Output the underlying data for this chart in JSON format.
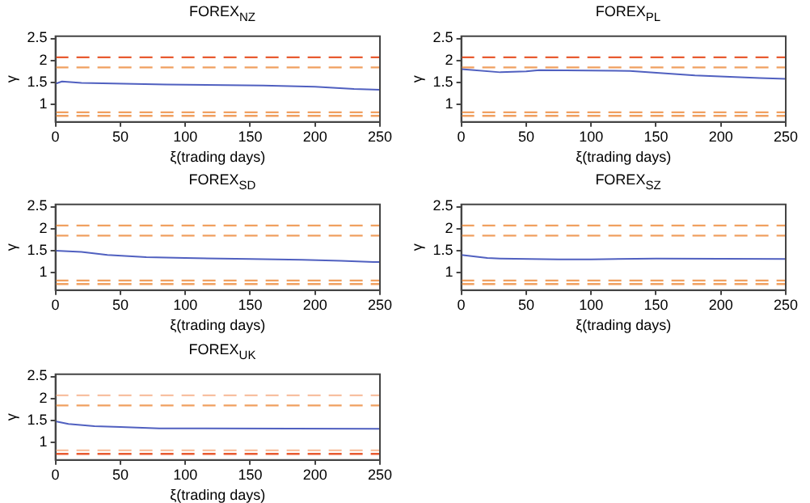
{
  "chart_data": [
    {
      "type": "line",
      "title": "FOREX$_{NZ}$",
      "xlabel": "ξ(trading days)",
      "ylabel": "γ",
      "xlim": [
        0,
        250
      ],
      "xticks": [
        0,
        50,
        100,
        150,
        200,
        250
      ],
      "ylim": [
        0.6,
        2.55
      ],
      "yticks": [
        1,
        1.5,
        2,
        2.5
      ],
      "grid": false,
      "legend": false,
      "marker": "none",
      "line_style": "solid",
      "series": [
        {
          "color": "#5060c0",
          "x": [
            0,
            5,
            20,
            85,
            160,
            200,
            230,
            250
          ],
          "values": [
            1.47,
            1.52,
            1.49,
            1.45,
            1.43,
            1.4,
            1.35,
            1.33
          ]
        }
      ],
      "ref_lines": [
        {
          "axis": "y",
          "value": 2.07,
          "color": "#e85a30",
          "line_style": "dashed"
        },
        {
          "axis": "y",
          "value": 1.84,
          "color": "#f0a060",
          "line_style": "dashed"
        },
        {
          "axis": "y",
          "value": 0.82,
          "color": "#f0a060",
          "line_style": "dashed"
        },
        {
          "axis": "y",
          "value": 0.74,
          "color": "#f0a060",
          "line_style": "dashed"
        }
      ]
    },
    {
      "type": "line",
      "title": "FOREX$_{PL}$",
      "xlabel": "ξ(trading days)",
      "ylabel": "γ",
      "xlim": [
        0,
        250
      ],
      "xticks": [
        0,
        50,
        100,
        150,
        200,
        250
      ],
      "ylim": [
        0.6,
        2.55
      ],
      "yticks": [
        1,
        1.5,
        2,
        2.5
      ],
      "grid": false,
      "legend": false,
      "marker": "none",
      "line_style": "solid",
      "series": [
        {
          "color": "#5060c0",
          "x": [
            0,
            10,
            30,
            50,
            60,
            130,
            180,
            230,
            250
          ],
          "values": [
            1.8,
            1.78,
            1.73,
            1.75,
            1.78,
            1.76,
            1.66,
            1.6,
            1.58
          ]
        }
      ],
      "ref_lines": [
        {
          "axis": "y",
          "value": 2.07,
          "color": "#e85a30",
          "line_style": "dashed"
        },
        {
          "axis": "y",
          "value": 1.84,
          "color": "#f0a060",
          "line_style": "dashed"
        },
        {
          "axis": "y",
          "value": 0.82,
          "color": "#f0a060",
          "line_style": "dashed"
        },
        {
          "axis": "y",
          "value": 0.74,
          "color": "#f0a060",
          "line_style": "dashed"
        }
      ]
    },
    {
      "type": "line",
      "title": "FOREX$_{SD}$",
      "xlabel": "ξ(trading days)",
      "ylabel": "γ",
      "xlim": [
        0,
        250
      ],
      "xticks": [
        0,
        50,
        100,
        150,
        200,
        250
      ],
      "ylim": [
        0.6,
        2.55
      ],
      "yticks": [
        1,
        1.5,
        2,
        2.5
      ],
      "grid": false,
      "legend": false,
      "marker": "none",
      "line_style": "solid",
      "series": [
        {
          "color": "#5060c0",
          "x": [
            0,
            20,
            40,
            70,
            100,
            150,
            190,
            220,
            245,
            250
          ],
          "values": [
            1.5,
            1.47,
            1.4,
            1.35,
            1.33,
            1.31,
            1.29,
            1.27,
            1.24,
            1.24
          ]
        }
      ],
      "ref_lines": [
        {
          "axis": "y",
          "value": 2.07,
          "color": "#f0a060",
          "line_style": "dashed"
        },
        {
          "axis": "y",
          "value": 1.84,
          "color": "#f0a060",
          "line_style": "dashed"
        },
        {
          "axis": "y",
          "value": 0.82,
          "color": "#f0a060",
          "line_style": "dashed"
        },
        {
          "axis": "y",
          "value": 0.74,
          "color": "#f0a060",
          "line_style": "dashed"
        }
      ]
    },
    {
      "type": "line",
      "title": "FOREX$_{SZ}$",
      "xlabel": "ξ(trading days)",
      "ylabel": "γ",
      "xlim": [
        0,
        250
      ],
      "xticks": [
        0,
        50,
        100,
        150,
        200,
        250
      ],
      "ylim": [
        0.6,
        2.55
      ],
      "yticks": [
        1,
        1.5,
        2,
        2.5
      ],
      "grid": false,
      "legend": false,
      "marker": "none",
      "line_style": "solid",
      "series": [
        {
          "color": "#5060c0",
          "x": [
            0,
            20,
            30,
            75,
            100,
            150,
            250
          ],
          "values": [
            1.4,
            1.33,
            1.32,
            1.3,
            1.3,
            1.32,
            1.31
          ]
        }
      ],
      "ref_lines": [
        {
          "axis": "y",
          "value": 2.07,
          "color": "#f0a060",
          "line_style": "dashed"
        },
        {
          "axis": "y",
          "value": 1.84,
          "color": "#f0a060",
          "line_style": "dashed"
        },
        {
          "axis": "y",
          "value": 0.82,
          "color": "#f0a060",
          "line_style": "dashed"
        },
        {
          "axis": "y",
          "value": 0.74,
          "color": "#f0a060",
          "line_style": "dashed"
        }
      ]
    },
    {
      "type": "line",
      "title": "FOREX$_{UK}$",
      "xlabel": "ξ(trading days)",
      "ylabel": "γ",
      "xlim": [
        0,
        250
      ],
      "xticks": [
        0,
        50,
        100,
        150,
        200,
        250
      ],
      "ylim": [
        0.6,
        2.55
      ],
      "yticks": [
        1,
        1.5,
        2,
        2.5
      ],
      "grid": false,
      "legend": false,
      "marker": "none",
      "line_style": "solid",
      "series": [
        {
          "color": "#5060c0",
          "x": [
            0,
            10,
            30,
            50,
            80,
            250
          ],
          "values": [
            1.48,
            1.42,
            1.37,
            1.35,
            1.32,
            1.31
          ]
        }
      ],
      "ref_lines": [
        {
          "axis": "y",
          "value": 2.07,
          "color": "#f8c0a0",
          "line_style": "dashed"
        },
        {
          "axis": "y",
          "value": 1.84,
          "color": "#f0a060",
          "line_style": "dashed"
        },
        {
          "axis": "y",
          "value": 0.82,
          "color": "#f8c0a0",
          "line_style": "dashed"
        },
        {
          "axis": "y",
          "value": 0.74,
          "color": "#e85a30",
          "line_style": "dashed"
        }
      ]
    }
  ]
}
